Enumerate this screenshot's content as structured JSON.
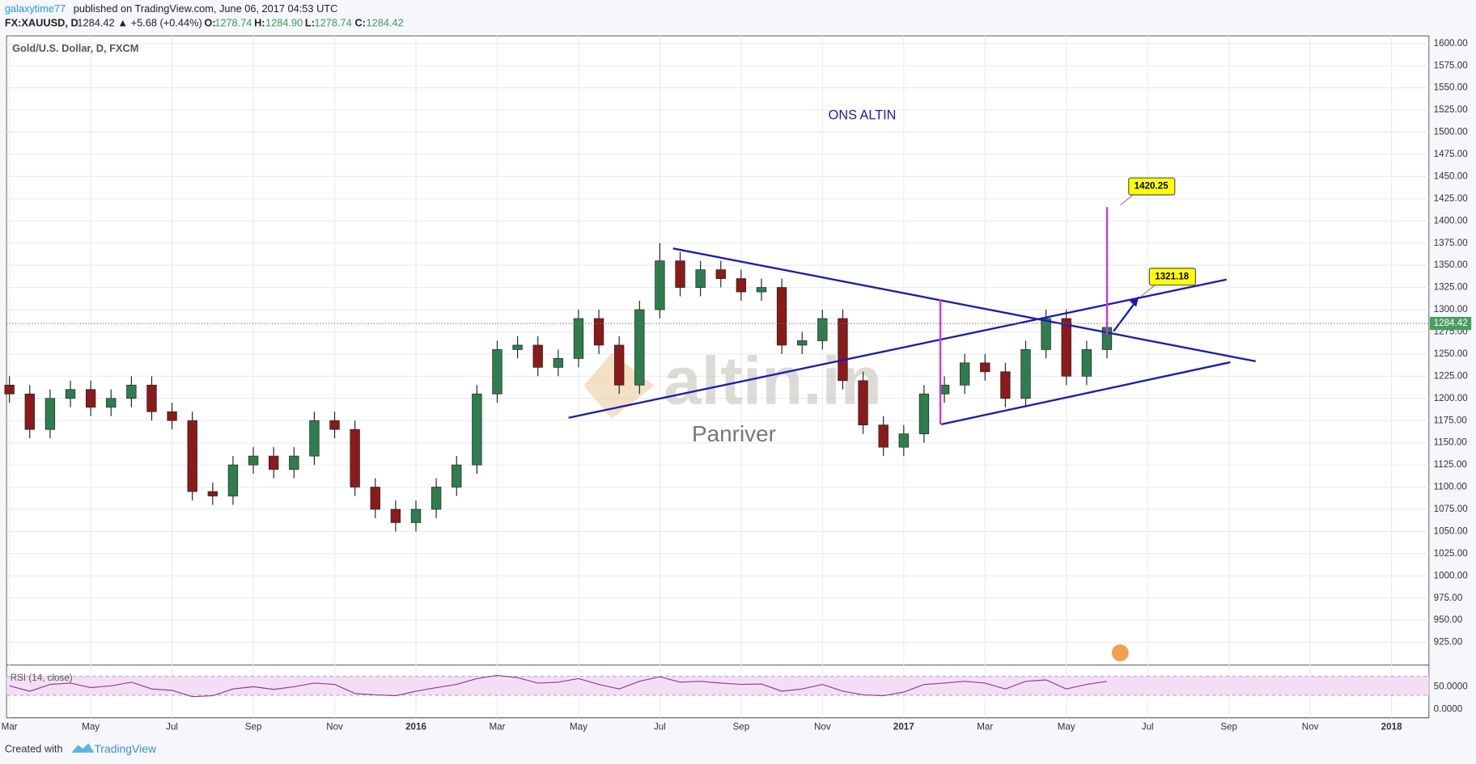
{
  "header": {
    "user": "galaxytime77",
    "published": "published on TradingView.com, June 06, 2017 04:53 UTC",
    "symbol": "FX:XAUUSD, D",
    "last": "1284.42",
    "change": "▲ +5.68 (+0.44%)",
    "o_label": "O:",
    "o": "1278.74",
    "h_label": "H:",
    "h": "1284.90",
    "l_label": "L:",
    "l": "1278.74",
    "c_label": "C:",
    "c": "1284.42"
  },
  "chart_data": {
    "type": "candlestick",
    "title": "Gold/U.S. Dollar, D, FXCM",
    "annotation": "ONS ALTIN",
    "watermark": "altin.in",
    "watermark_sub": "Panriver",
    "targets": [
      "1420.25",
      "1321.18"
    ],
    "last_price": {
      "value": 1284.42,
      "label": "1284.42"
    },
    "up_color": "#2e7d4f",
    "down_color": "#8b1a1a",
    "grid": true,
    "x": [
      0,
      0.5,
      1,
      1.5,
      2,
      2.5,
      3,
      3.5,
      4,
      4.5,
      5,
      5.5,
      6,
      6.5,
      7,
      7.5,
      8,
      8.5,
      9,
      9.5,
      10,
      10.5,
      11,
      11.5,
      12,
      12.5,
      13,
      13.5,
      14,
      14.5,
      15,
      15.5,
      16,
      16.5,
      17,
      17.5,
      18,
      18.5,
      19,
      19.5,
      20,
      20.5,
      21,
      21.5,
      22,
      22.5,
      23,
      23.5,
      24,
      24.5,
      25,
      25.5,
      26,
      26.5,
      27
    ],
    "open": [
      1215,
      1205,
      1165,
      1200,
      1210,
      1190,
      1200,
      1215,
      1185,
      1175,
      1095,
      1090,
      1125,
      1135,
      1120,
      1135,
      1175,
      1165,
      1100,
      1075,
      1060,
      1075,
      1100,
      1125,
      1205,
      1255,
      1260,
      1235,
      1245,
      1290,
      1260,
      1215,
      1300,
      1355,
      1325,
      1345,
      1335,
      1320,
      1325,
      1260,
      1265,
      1290,
      1220,
      1170,
      1145,
      1160,
      1205,
      1215,
      1240,
      1230,
      1200,
      1255,
      1290,
      1225,
      1255
    ],
    "high": [
      1225,
      1215,
      1210,
      1220,
      1220,
      1210,
      1225,
      1225,
      1195,
      1185,
      1105,
      1135,
      1145,
      1145,
      1145,
      1185,
      1185,
      1175,
      1110,
      1085,
      1085,
      1110,
      1135,
      1215,
      1265,
      1270,
      1270,
      1255,
      1300,
      1300,
      1270,
      1310,
      1375,
      1365,
      1355,
      1355,
      1345,
      1335,
      1335,
      1275,
      1300,
      1300,
      1230,
      1180,
      1170,
      1215,
      1225,
      1250,
      1250,
      1240,
      1265,
      1300,
      1300,
      1265,
      1290
    ],
    "low": [
      1195,
      1155,
      1155,
      1190,
      1180,
      1180,
      1190,
      1175,
      1165,
      1085,
      1080,
      1080,
      1115,
      1110,
      1110,
      1125,
      1155,
      1090,
      1065,
      1050,
      1050,
      1065,
      1090,
      1115,
      1195,
      1245,
      1225,
      1225,
      1235,
      1250,
      1205,
      1205,
      1290,
      1315,
      1315,
      1325,
      1310,
      1310,
      1250,
      1250,
      1255,
      1210,
      1160,
      1135,
      1135,
      1150,
      1195,
      1205,
      1220,
      1190,
      1190,
      1245,
      1215,
      1215,
      1245
    ],
    "close": [
      1205,
      1165,
      1200,
      1210,
      1190,
      1200,
      1215,
      1185,
      1175,
      1095,
      1090,
      1125,
      1135,
      1120,
      1135,
      1175,
      1165,
      1100,
      1075,
      1060,
      1075,
      1100,
      1125,
      1205,
      1255,
      1260,
      1235,
      1245,
      1290,
      1260,
      1215,
      1300,
      1355,
      1325,
      1345,
      1335,
      1320,
      1325,
      1260,
      1265,
      1290,
      1220,
      1170,
      1145,
      1160,
      1205,
      1215,
      1240,
      1230,
      1200,
      1255,
      1290,
      1225,
      1255,
      1280
    ],
    "xlim": [
      -0.07,
      34.92
    ],
    "ylim": [
      900.5,
      1608.5
    ],
    "xticks": [
      {
        "value": 0,
        "label": "Mar"
      },
      {
        "value": 2,
        "label": "May"
      },
      {
        "value": 4,
        "label": "Jul"
      },
      {
        "value": 6,
        "label": "Sep"
      },
      {
        "value": 8,
        "label": "Nov"
      },
      {
        "value": 10,
        "label": "2016"
      },
      {
        "value": 12,
        "label": "Mar"
      },
      {
        "value": 14,
        "label": "May"
      },
      {
        "value": 16,
        "label": "Jul"
      },
      {
        "value": 18,
        "label": "Sep"
      },
      {
        "value": 20,
        "label": "Nov"
      },
      {
        "value": 22,
        "label": "2017"
      },
      {
        "value": 24,
        "label": "Mar"
      },
      {
        "value": 26,
        "label": "May"
      },
      {
        "value": 28,
        "label": "Jul"
      },
      {
        "value": 30,
        "label": "Sep"
      },
      {
        "value": 32,
        "label": "Nov"
      },
      {
        "value": 34,
        "label": "2018"
      }
    ],
    "yticks": [
      {
        "value": 925,
        "label": "925.00"
      },
      {
        "value": 950,
        "label": "950.00"
      },
      {
        "value": 975,
        "label": "975.00"
      },
      {
        "value": 1000,
        "label": "1000.00"
      },
      {
        "value": 1025,
        "label": "1025.00"
      },
      {
        "value": 1050,
        "label": "1050.00"
      },
      {
        "value": 1075,
        "label": "1075.00"
      },
      {
        "value": 1100,
        "label": "1100.00"
      },
      {
        "value": 1125,
        "label": "1125.00"
      },
      {
        "value": 1150,
        "label": "1150.00"
      },
      {
        "value": 1175,
        "label": "1175.00"
      },
      {
        "value": 1200,
        "label": "1200.00"
      },
      {
        "value": 1225,
        "label": "1225.00"
      },
      {
        "value": 1250,
        "label": "1250.00"
      },
      {
        "value": 1275,
        "label": "1275.00"
      },
      {
        "value": 1300,
        "label": "1300.00"
      },
      {
        "value": 1325,
        "label": "1325.00"
      },
      {
        "value": 1350,
        "label": "1350.00"
      },
      {
        "value": 1375,
        "label": "1375.00"
      },
      {
        "value": 1400,
        "label": "1400.00"
      },
      {
        "value": 1425,
        "label": "1425.00"
      },
      {
        "value": 1450,
        "label": "1450.00"
      },
      {
        "value": 1475,
        "label": "1475.00"
      },
      {
        "value": 1500,
        "label": "1500.00"
      },
      {
        "value": 1525,
        "label": "1525.00"
      },
      {
        "value": 1550,
        "label": "1550.00"
      },
      {
        "value": 1575,
        "label": "1575.00"
      },
      {
        "value": 1600,
        "label": "1600.00"
      }
    ],
    "rsi": {
      "name": "RSI (14, close)",
      "color": "#8e3b8e",
      "values": [
        52,
        40,
        55,
        58,
        48,
        52,
        60,
        45,
        42,
        28,
        30,
        45,
        50,
        44,
        50,
        58,
        55,
        35,
        32,
        30,
        40,
        48,
        55,
        68,
        75,
        70,
        58,
        60,
        68,
        55,
        45,
        62,
        72,
        60,
        62,
        58,
        55,
        56,
        40,
        45,
        55,
        40,
        32,
        30,
        38,
        55,
        58,
        62,
        58,
        45,
        62,
        65,
        45,
        55,
        62
      ],
      "ylim": [
        -18.75,
        95.83
      ],
      "yticks": [
        {
          "value": 0,
          "label": "0.0000"
        },
        {
          "value": 50,
          "label": "50.0000"
        }
      ]
    }
  },
  "footer": {
    "created": "Created with",
    "brand": "TradingView"
  }
}
